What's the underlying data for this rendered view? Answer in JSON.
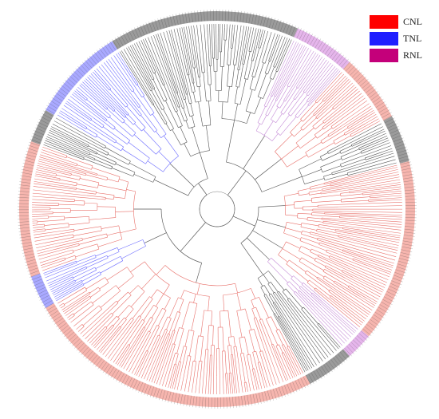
{
  "legend": {
    "items": [
      {
        "label": "CNL",
        "color": "#ff0000"
      },
      {
        "label": "TNL",
        "color": "#1f1fff"
      },
      {
        "label": "RNL",
        "color": "#c4007a"
      }
    ]
  },
  "tree": {
    "layout": "circular",
    "clade_colors": {
      "CNL": "#e8706a",
      "TNL": "#6b6bff",
      "RNL": "#c48ad6",
      "unclassified": "#555555",
      "label_band_CNL": "#f4a8a0",
      "label_band_TNL": "#9a9aff",
      "label_band_RNL": "#e0a8e8",
      "label_band_unclassified": "#8a8a8a"
    }
  }
}
